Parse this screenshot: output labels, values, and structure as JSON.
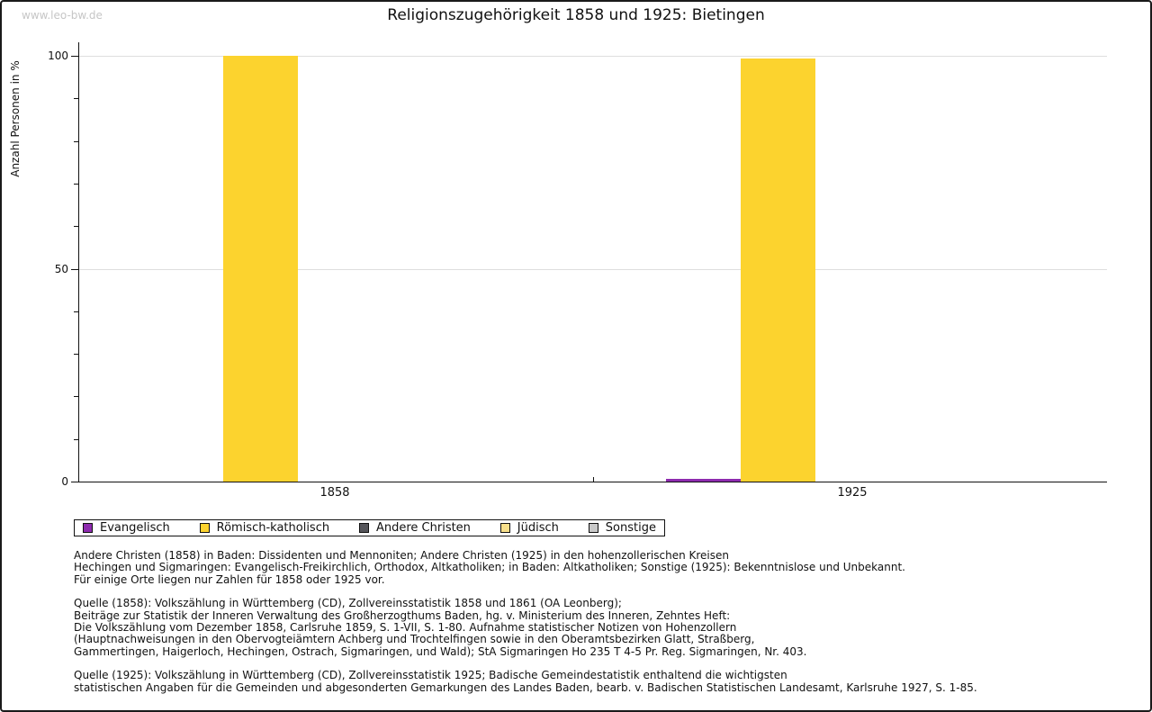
{
  "watermark": "www.leo-bw.de",
  "title": "Religionszugehörigkeit 1858 und 1925: Bietingen",
  "chart_data": {
    "type": "bar",
    "categories": [
      "1858",
      "1925"
    ],
    "series": [
      {
        "name": "Evangelisch",
        "color": "#8e2baf",
        "values": [
          0,
          0.6
        ]
      },
      {
        "name": "Römisch-katholisch",
        "color": "#fcd32e",
        "values": [
          100,
          99.4
        ]
      },
      {
        "name": "Andere Christen",
        "color": "#55555a",
        "values": [
          0,
          0
        ]
      },
      {
        "name": "Jüdisch",
        "color": "#f8e08b",
        "values": [
          0,
          0
        ]
      },
      {
        "name": "Sonstige",
        "color": "#c9c9c9",
        "values": [
          0,
          0
        ]
      }
    ],
    "title": "Religionszugehörigkeit 1858 und 1925: Bietingen",
    "xlabel": "",
    "ylabel": "Anzahl Personen in %",
    "ylim": [
      0,
      100
    ],
    "yticks": [
      0,
      50,
      100
    ],
    "minor_tick_step": 10,
    "grid": "horizontal",
    "legend_position": "bottom"
  },
  "notes": [
    {
      "lines": [
        "Andere Christen (1858) in Baden: Dissidenten und Mennoniten; Andere Christen (1925) in den hohenzollerischen Kreisen",
        "Hechingen und Sigmaringen: Evangelisch-Freikirchlich, Orthodox, Altkatholiken; in Baden: Altkatholiken; Sonstige (1925): Bekenntnislose und Unbekannt.",
        "Für einige Orte liegen nur Zahlen für 1858 oder 1925 vor."
      ]
    },
    {
      "lines": [
        "Quelle (1858): Volkszählung in Württemberg (CD), Zollvereinsstatistik 1858 und 1861 (OA Leonberg);",
        "Beiträge zur Statistik der Inneren Verwaltung des Großherzogthums Baden, hg. v. Ministerium des Inneren, Zehntes Heft:",
        "Die Volkszählung vom Dezember 1858, Carlsruhe 1859, S. 1-VII, S. 1-80. Aufnahme statistischer Notizen von Hohenzollern",
        "(Hauptnachweisungen in den Obervogteiämtern Achberg und Trochtelfingen sowie in den Oberamtsbezirken Glatt, Straßberg,",
        "Gammertingen, Haigerloch, Hechingen, Ostrach, Sigmaringen, und Wald); StA Sigmaringen Ho 235 T 4-5 Pr. Reg. Sigmaringen, Nr. 403."
      ]
    },
    {
      "lines": [
        "Quelle (1925): Volkszählung in Württemberg (CD), Zollvereinsstatistik 1925; Badische Gemeindestatistik enthaltend die wichtigsten",
        "statistischen Angaben für die Gemeinden und abgesonderten Gemarkungen des Landes Baden, bearb. v. Badischen Statistischen Landesamt, Karlsruhe 1927, S. 1-85."
      ]
    }
  ]
}
